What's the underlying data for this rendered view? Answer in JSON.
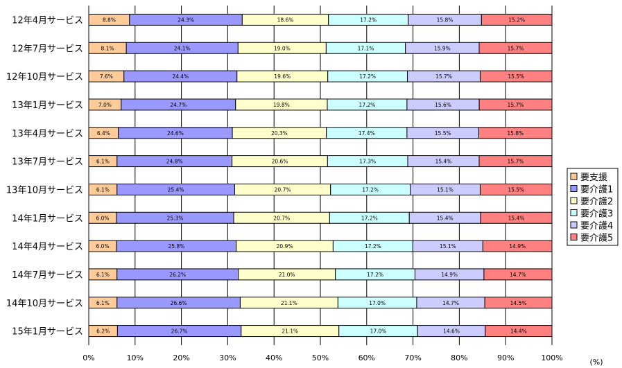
{
  "chart_data": {
    "type": "bar",
    "orientation": "horizontal",
    "stacked": true,
    "percent": true,
    "xlim": [
      0,
      100
    ],
    "xticks": [
      "0%",
      "10%",
      "20%",
      "30%",
      "40%",
      "50%",
      "60%",
      "70%",
      "80%",
      "90%",
      "100%"
    ],
    "unit_label": "(%)",
    "grid": "vertical",
    "legend_position": "right",
    "categories": [
      "12年4月サービス",
      "12年7月サービス",
      "12年10月サービス",
      "13年1月サービス",
      "13年4月サービス",
      "13年7月サービス",
      "13年10月サービス",
      "14年1月サービス",
      "14年4月サービス",
      "14年7月サービス",
      "14年10月サービス",
      "15年1月サービス"
    ],
    "series": [
      {
        "name": "要支援",
        "color": "#ffcc99",
        "values": [
          8.8,
          8.1,
          7.6,
          7.0,
          6.4,
          6.1,
          6.1,
          6.0,
          6.0,
          6.1,
          6.1,
          6.2
        ]
      },
      {
        "name": "要介護1",
        "color": "#9999ff",
        "values": [
          24.3,
          24.1,
          24.4,
          24.7,
          24.6,
          24.8,
          25.4,
          25.3,
          25.8,
          26.2,
          26.6,
          26.7
        ]
      },
      {
        "name": "要介護2",
        "color": "#ffffcc",
        "values": [
          18.6,
          19.0,
          19.6,
          19.8,
          20.3,
          20.6,
          20.7,
          20.7,
          20.9,
          21.0,
          21.1,
          21.1
        ]
      },
      {
        "name": "要介護3",
        "color": "#ccffff",
        "values": [
          17.2,
          17.1,
          17.2,
          17.2,
          17.4,
          17.3,
          17.2,
          17.2,
          17.2,
          17.2,
          17.0,
          17.0
        ]
      },
      {
        "name": "要介護4",
        "color": "#ccccff",
        "values": [
          15.8,
          15.9,
          15.7,
          15.6,
          15.5,
          15.4,
          15.1,
          15.4,
          15.1,
          14.9,
          14.7,
          14.6
        ]
      },
      {
        "name": "要介護5",
        "color": "#ff8080",
        "values": [
          15.2,
          15.7,
          15.5,
          15.7,
          15.8,
          15.7,
          15.5,
          15.4,
          14.9,
          14.7,
          14.5,
          14.4
        ]
      }
    ]
  }
}
